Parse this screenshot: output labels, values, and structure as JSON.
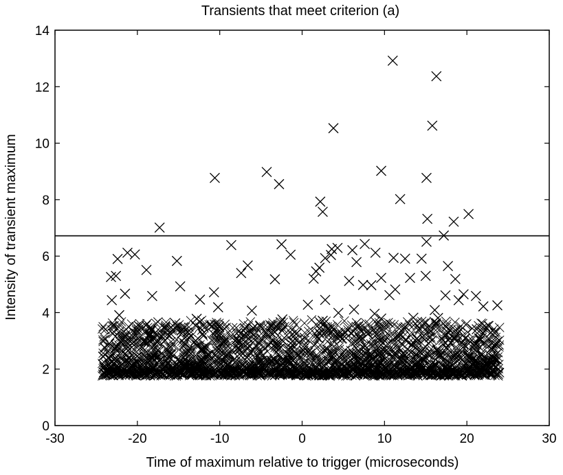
{
  "chart_data": {
    "type": "scatter",
    "title": "Transients that meet criterion (a)",
    "xlabel": "Time of maximum relative to trigger (microseconds)",
    "ylabel": "Intensity of transient maximum",
    "xlim": [
      -30,
      30
    ],
    "ylim": [
      0,
      14
    ],
    "xticks": [
      -30,
      -20,
      -10,
      0,
      10,
      20,
      30
    ],
    "yticks": [
      0,
      2,
      4,
      6,
      8,
      10,
      12,
      14
    ],
    "grid": false,
    "marker": "x",
    "marker_color": "#000000",
    "threshold_line": {
      "y": 6.72
    },
    "series": [
      {
        "points": [
          [
            11.0,
            12.92
          ],
          [
            16.3,
            12.37
          ],
          [
            15.8,
            10.62
          ],
          [
            3.8,
            10.53
          ],
          [
            9.6,
            9.02
          ],
          [
            -4.3,
            8.98
          ],
          [
            -10.6,
            8.77
          ],
          [
            15.1,
            8.77
          ],
          [
            -2.8,
            8.55
          ],
          [
            11.9,
            8.02
          ],
          [
            2.2,
            7.93
          ],
          [
            2.5,
            7.57
          ],
          [
            20.2,
            7.49
          ],
          [
            15.2,
            7.32
          ],
          [
            18.4,
            7.22
          ],
          [
            -17.3,
            7.01
          ],
          [
            17.2,
            6.73
          ],
          [
            15.1,
            6.51
          ],
          [
            -8.6,
            6.39
          ],
          [
            -2.5,
            6.42
          ],
          [
            -21.2,
            6.12
          ],
          [
            -20.3,
            6.06
          ],
          [
            3.6,
            6.25
          ],
          [
            4.3,
            6.29
          ],
          [
            6.1,
            6.21
          ],
          [
            7.6,
            6.43
          ],
          [
            3.5,
            6.04
          ],
          [
            2.8,
            5.93
          ],
          [
            -22.4,
            5.9
          ],
          [
            -15.2,
            5.83
          ],
          [
            -1.4,
            6.05
          ],
          [
            8.9,
            6.12
          ],
          [
            11.1,
            5.94
          ],
          [
            12.5,
            5.91
          ],
          [
            14.5,
            5.91
          ],
          [
            -6.6,
            5.67
          ],
          [
            6.6,
            5.79
          ],
          [
            -18.9,
            5.51
          ],
          [
            -7.4,
            5.4
          ],
          [
            2.1,
            5.59
          ],
          [
            17.7,
            5.65
          ],
          [
            1.7,
            5.46
          ],
          [
            -22.6,
            5.3
          ],
          [
            -23.2,
            5.26
          ],
          [
            -3.3,
            5.18
          ],
          [
            1.4,
            5.2
          ],
          [
            5.7,
            5.12
          ],
          [
            9.6,
            5.23
          ],
          [
            13.1,
            5.23
          ],
          [
            15.0,
            5.3
          ],
          [
            18.6,
            5.19
          ],
          [
            -14.8,
            4.93
          ],
          [
            7.4,
            4.98
          ],
          [
            11.3,
            4.82
          ],
          [
            8.4,
            4.97
          ],
          [
            -21.5,
            4.67
          ],
          [
            -10.7,
            4.72
          ],
          [
            -18.2,
            4.59
          ],
          [
            17.4,
            4.61
          ],
          [
            19.6,
            4.65
          ],
          [
            21.1,
            4.59
          ],
          [
            -23.1,
            4.44
          ],
          [
            -12.4,
            4.46
          ],
          [
            2.8,
            4.45
          ],
          [
            19.0,
            4.44
          ],
          [
            10.6,
            4.62
          ],
          [
            -10.2,
            4.19
          ],
          [
            0.7,
            4.28
          ],
          [
            22.0,
            4.22
          ],
          [
            23.7,
            4.26
          ],
          [
            -22.2,
            3.91
          ],
          [
            -6.1,
            4.07
          ],
          [
            4.4,
            3.99
          ],
          [
            6.3,
            4.11
          ],
          [
            16.1,
            4.09
          ],
          [
            8.8,
            3.96
          ],
          [
            -15.4,
            3.62
          ],
          [
            -2.4,
            3.76
          ],
          [
            -2.6,
            3.66
          ],
          [
            2.5,
            3.71
          ],
          [
            9.6,
            3.79
          ],
          [
            13.5,
            3.82
          ],
          [
            16.5,
            3.81
          ],
          [
            -19.8,
            3.52
          ],
          [
            -12.8,
            3.78
          ],
          [
            -5.1,
            3.52
          ],
          [
            18.6,
            3.38
          ],
          [
            21.2,
            3.41
          ],
          [
            22.9,
            3.29
          ],
          [
            -20.8,
            3.05
          ],
          [
            -16.1,
            3.18
          ],
          [
            0.3,
            3.11
          ],
          [
            4.9,
            3.22
          ],
          [
            11.8,
            3.15
          ],
          [
            -22.1,
            2.98
          ],
          [
            -23.4,
            2.9
          ],
          [
            -9.4,
            3.02
          ],
          [
            7.1,
            3.04
          ],
          [
            13.9,
            2.97
          ]
        ]
      }
    ]
  }
}
